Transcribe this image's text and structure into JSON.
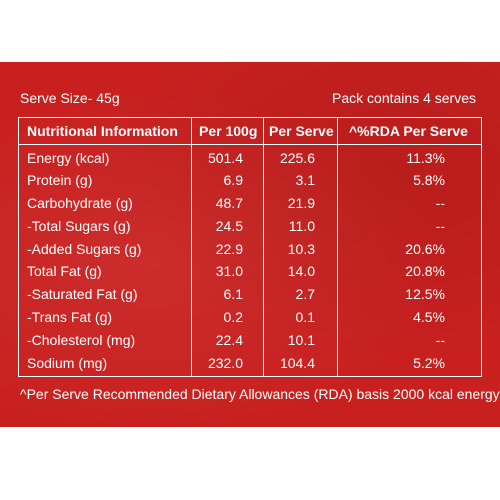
{
  "serve_size": "Serve Size- 45g",
  "pack_contains": "Pack contains 4 serves",
  "headers": [
    "Nutritional Information",
    "Per 100g",
    "Per Serve",
    "^%RDA Per Serve"
  ],
  "rows": [
    {
      "name": "Energy (kcal)",
      "per100": "501.4",
      "perServe": "225.6",
      "rda": "11.3%"
    },
    {
      "name": "Protein (g)",
      "per100": "6.9",
      "perServe": "3.1",
      "rda": "5.8%"
    },
    {
      "name": "Carbohydrate (g)",
      "per100": "48.7",
      "perServe": "21.9",
      "rda": "--"
    },
    {
      "name": "-Total Sugars (g)",
      "per100": "24.5",
      "perServe": "11.0",
      "rda": "--"
    },
    {
      "name": "-Added Sugars (g)",
      "per100": "22.9",
      "perServe": "10.3",
      "rda": "20.6%"
    },
    {
      "name": "Total Fat (g)",
      "per100": "31.0",
      "perServe": "14.0",
      "rda": "20.8%"
    },
    {
      "name": "-Saturated Fat (g)",
      "per100": "6.1",
      "perServe": "2.7",
      "rda": "12.5%"
    },
    {
      "name": "-Trans Fat (g)",
      "per100": "0.2",
      "perServe": "0.1",
      "rda": "4.5%"
    },
    {
      "name": "-Cholesterol (mg)",
      "per100": "22.4",
      "perServe": "10.1",
      "rda": "--"
    },
    {
      "name": "Sodium (mg)",
      "per100": "232.0",
      "perServe": "104.4",
      "rda": "5.2%"
    }
  ],
  "footnote": "^Per Serve Recommended Dietary Allowances (RDA) basis 2000 kcal energy",
  "colors": {
    "background": "#c8201f",
    "text": "#ffffff"
  }
}
